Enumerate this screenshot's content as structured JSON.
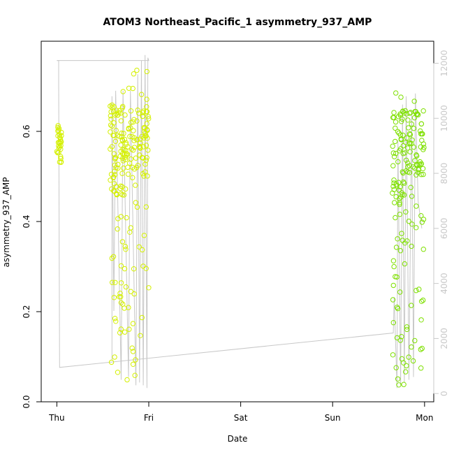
{
  "chart_data": {
    "type": "scatter",
    "title": "ATOM3 Northeast_Pacific_1 asymmetry_937_AMP",
    "xlabel": "Date",
    "ylabel": "asymmetry_937_AMP",
    "x_ticks": [
      "Thu",
      "Fri",
      "Sat",
      "Sun",
      "Mon"
    ],
    "xlim_days": [
      -0.17,
      4.1
    ],
    "ylim": [
      0,
      0.8
    ],
    "y_ticks": [
      0.0,
      0.2,
      0.4,
      0.6
    ],
    "y_tick_labels": [
      "0.0",
      "0.2",
      "0.4",
      "0.6"
    ],
    "y2_ticks": [
      0,
      2000,
      4000,
      6000,
      8000,
      10000,
      12000
    ],
    "y2_tick_labels": [
      "0",
      "2000",
      "4000",
      "6000",
      "8000",
      "10000",
      "12000"
    ],
    "y2lim": [
      -300,
      12800
    ],
    "grid": false,
    "legend": "none",
    "colors": {
      "early": "#d4f000",
      "late": "#7ee000",
      "line": "#c8c8c8",
      "axis": "#000000",
      "right_axis": "#c8c8c8"
    },
    "point_groups": [
      {
        "x_range": [
          0.0,
          0.05
        ],
        "n": 30,
        "dense": [
          0.53,
          0.62
        ],
        "sparse": [
          0.39,
          0.62
        ],
        "frac_dense": 0.85
      },
      {
        "x_range": [
          0.58,
          0.75
        ],
        "n": 110,
        "dense": [
          0.45,
          0.66
        ],
        "sparse": [
          0.03,
          0.69
        ],
        "frac_dense": 0.6
      },
      {
        "x_range": [
          0.75,
          1.0
        ],
        "n": 110,
        "dense": [
          0.5,
          0.65
        ],
        "sparse": [
          0.04,
          0.76
        ],
        "frac_dense": 0.6
      },
      {
        "x_range": [
          3.65,
          3.8
        ],
        "n": 90,
        "dense": [
          0.45,
          0.65
        ],
        "sparse": [
          0.02,
          0.7
        ],
        "frac_dense": 0.45
      },
      {
        "x_range": [
          3.8,
          4.0
        ],
        "n": 90,
        "dense": [
          0.5,
          0.65
        ],
        "sparse": [
          0.07,
          0.69
        ],
        "frac_dense": 0.55
      }
    ],
    "line_path": [
      [
        0.0,
        12100
      ],
      [
        0.02,
        12100
      ],
      [
        0.02,
        11300
      ],
      [
        0.03,
        950
      ],
      [
        3.66,
        2200
      ],
      [
        3.67,
        3500
      ],
      [
        3.7,
        200
      ],
      [
        3.71,
        9200
      ],
      [
        3.74,
        300
      ],
      [
        3.76,
        10500
      ],
      [
        3.78,
        400
      ],
      [
        3.8,
        10800
      ],
      [
        3.83,
        500
      ],
      [
        3.86,
        10300
      ],
      [
        3.88,
        600
      ],
      [
        3.9,
        10900
      ],
      [
        3.93,
        7000
      ],
      [
        3.97,
        6000
      ]
    ],
    "line_path_early": [
      [
        0.0,
        12100
      ],
      [
        1.0,
        12100
      ],
      [
        0.99,
        12200
      ],
      [
        0.98,
        200
      ],
      [
        0.96,
        12300
      ],
      [
        0.94,
        300
      ],
      [
        0.92,
        12100
      ],
      [
        0.9,
        400
      ],
      [
        0.88,
        11600
      ],
      [
        0.86,
        300
      ],
      [
        0.8,
        11000
      ],
      [
        0.78,
        600
      ],
      [
        0.72,
        11000
      ],
      [
        0.7,
        500
      ],
      [
        0.64,
        11000
      ],
      [
        0.62,
        3000
      ],
      [
        0.6,
        10800
      ],
      [
        0.6,
        1200
      ]
    ]
  }
}
